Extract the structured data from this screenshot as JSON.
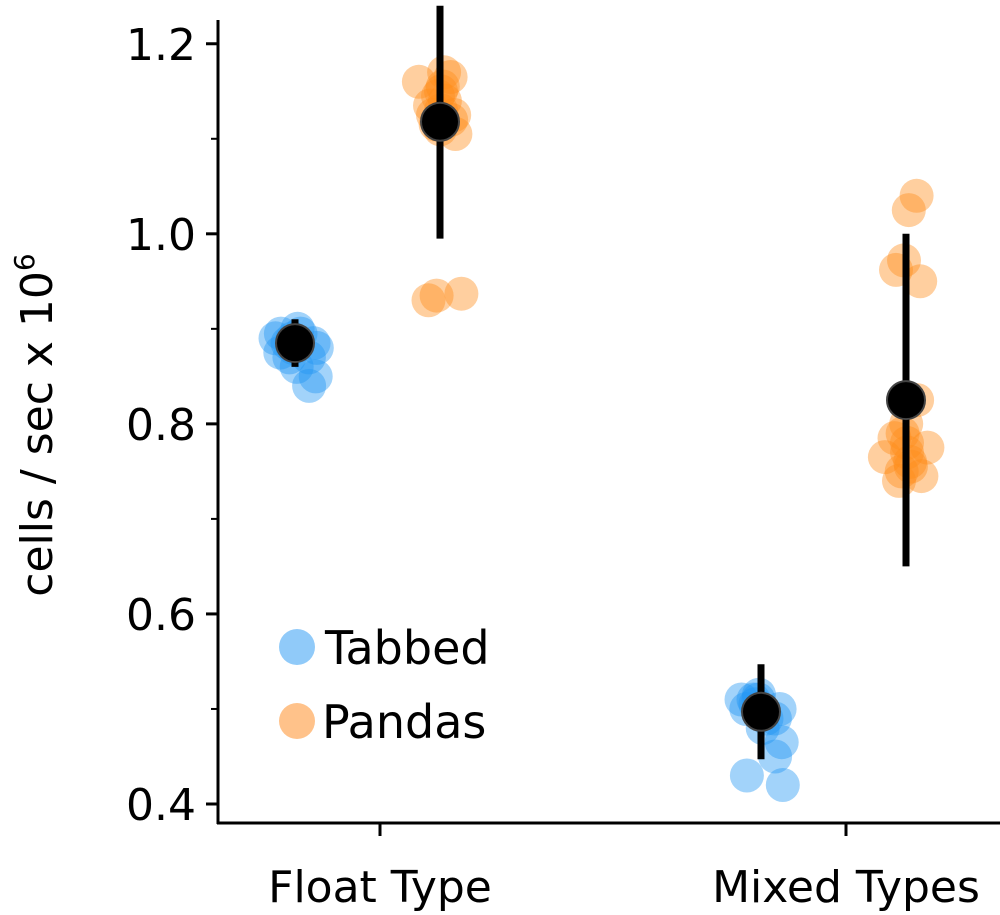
{
  "chart_data": {
    "type": "scatter",
    "title": "",
    "xlabel": "",
    "ylabel": "cells / sec x 10",
    "ylabel_superscript": "6",
    "categories": [
      "Float Type",
      "Mixed Types"
    ],
    "ylim": [
      0.38,
      1.225
    ],
    "yticks": [
      {
        "value": 0.4,
        "label": "0.4"
      },
      {
        "value": 0.6,
        "label": "0.6"
      },
      {
        "value": 0.8,
        "label": "0.8"
      },
      {
        "value": 1.0,
        "label": "1.0"
      },
      {
        "value": 1.2,
        "label": "1.2"
      }
    ],
    "yminor": [
      0.5,
      0.7,
      0.9,
      1.1
    ],
    "grid": false,
    "legend_position": "lower-left",
    "series": [
      {
        "name": "Tabbed",
        "color": "#2196F3",
        "legend_color": "#90CAF9",
        "points": [
          {
            "category": "Float Type",
            "values": [
              0.885,
              0.89,
              0.9,
              0.87,
              0.88,
              0.895,
              0.875,
              0.885,
              0.86,
              0.85,
              0.84,
              0.895,
              0.88,
              0.87,
              0.89
            ]
          },
          {
            "category": "Mixed Types",
            "values": [
              0.5,
              0.51,
              0.495,
              0.505,
              0.515,
              0.49,
              0.5,
              0.51,
              0.48,
              0.465,
              0.45,
              0.43,
              0.42,
              0.49,
              0.51
            ]
          }
        ],
        "summary": [
          {
            "category": "Float Type",
            "mean": 0.885,
            "low": 0.86,
            "high": 0.91
          },
          {
            "category": "Mixed Types",
            "mean": 0.497,
            "low": 0.447,
            "high": 0.547
          }
        ]
      },
      {
        "name": "Pandas",
        "color": "#FF8C1A",
        "legend_color": "#FFC28A",
        "points": [
          {
            "category": "Float Type",
            "values": [
              1.165,
              1.155,
              1.145,
              1.135,
              1.125,
              1.12,
              1.11,
              1.13,
              1.15,
              1.16,
              1.17,
              1.14,
              1.115,
              1.105,
              1.125,
              0.935,
              0.93,
              0.937
            ]
          },
          {
            "category": "Mixed Types",
            "values": [
              1.04,
              1.025,
              0.972,
              0.962,
              0.95,
              0.825,
              0.8,
              0.78,
              0.77,
              0.765,
              0.76,
              0.755,
              0.75,
              0.745,
              0.74,
              0.79,
              0.785,
              0.775
            ]
          }
        ],
        "summary": [
          {
            "category": "Float Type",
            "mean": 1.118,
            "low": 0.995,
            "high": 1.24
          },
          {
            "category": "Mixed Types",
            "mean": 0.825,
            "low": 0.65,
            "high": 1.0
          }
        ]
      }
    ]
  }
}
